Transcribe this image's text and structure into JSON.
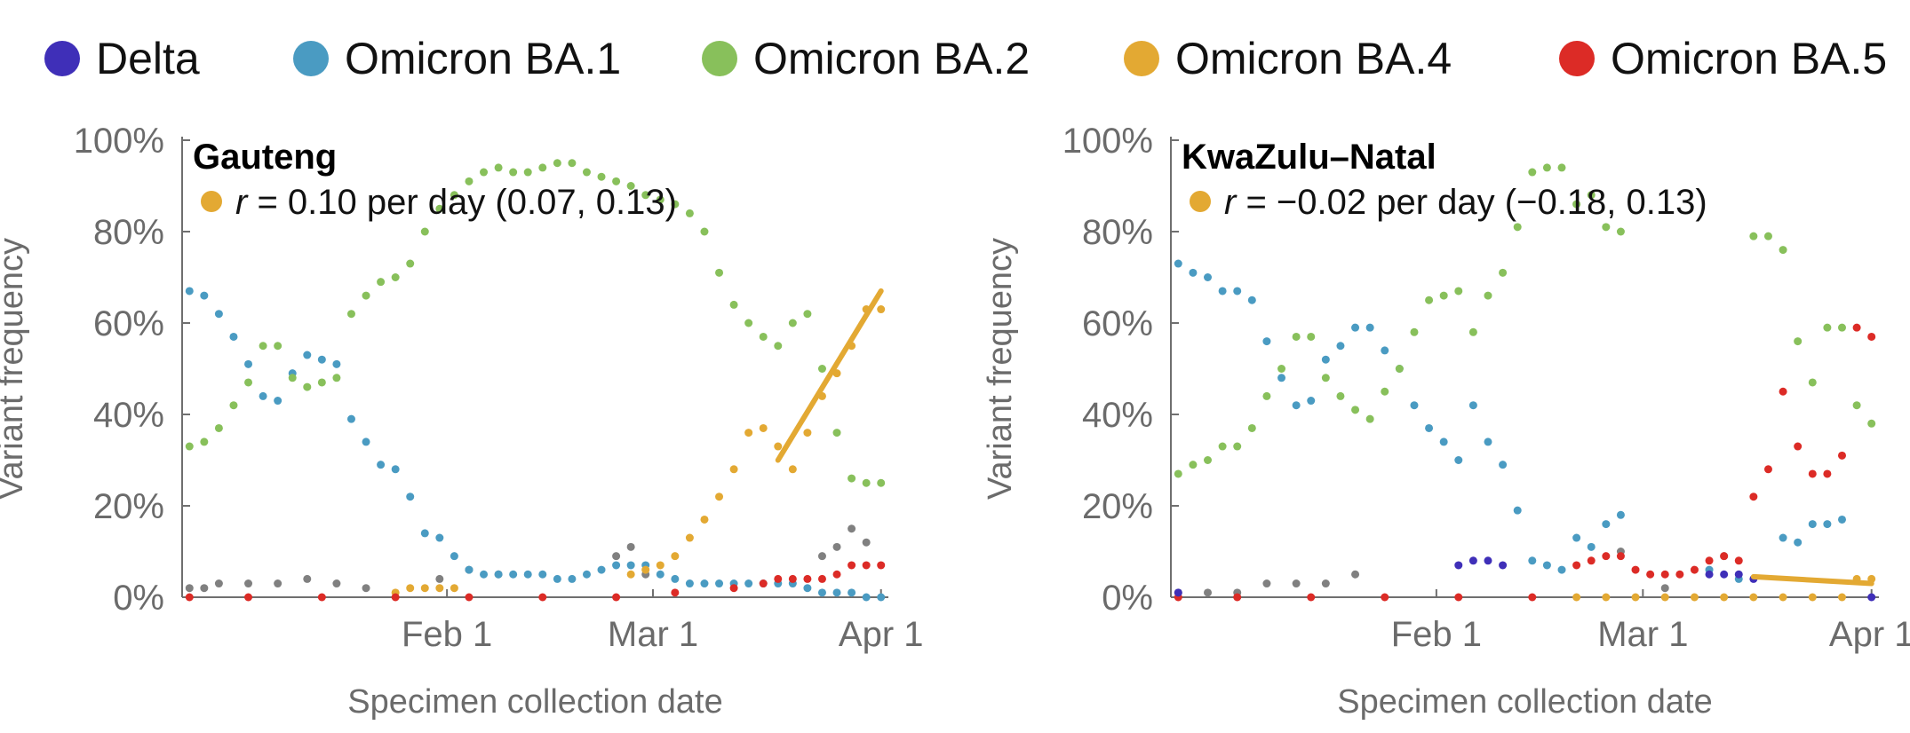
{
  "legend": {
    "items": [
      {
        "label": "Delta",
        "color": "#3f2fb8"
      },
      {
        "label": "Omicron BA.1",
        "color": "#4a9bc2"
      },
      {
        "label": "Omicron BA.2",
        "color": "#88c05b"
      },
      {
        "label": "Omicron BA.4",
        "color": "#e3a933"
      },
      {
        "label": "Omicron BA.5",
        "color": "#dc2b26"
      }
    ],
    "other_color": "#808080"
  },
  "chart_data": [
    {
      "type": "scatter",
      "title": "Gauteng",
      "annotation": {
        "symbol": "r",
        "text": " = 0.10 per day (0.07, 0.13)",
        "color": "#e3a933"
      },
      "xlabel": "Specimen collection date",
      "ylabel": "Variant frequency",
      "x_ticks": [
        "Feb 1",
        "Mar 1",
        "Apr 1"
      ],
      "y_ticks": [
        "0%",
        "20%",
        "40%",
        "60%",
        "80%",
        "100%"
      ],
      "xlim": [
        "2021-12-27",
        "2022-04-02"
      ],
      "ylim": [
        0,
        1
      ],
      "series": [
        {
          "name": "Omicron BA.1",
          "color": "#4a9bc2",
          "x": [
            "2021-12-28",
            "2021-12-30",
            "2022-01-01",
            "2022-01-03",
            "2022-01-05",
            "2022-01-07",
            "2022-01-09",
            "2022-01-11",
            "2022-01-13",
            "2022-01-15",
            "2022-01-17",
            "2022-01-19",
            "2022-01-21",
            "2022-01-23",
            "2022-01-25",
            "2022-01-27",
            "2022-01-29",
            "2022-01-31",
            "2022-02-02",
            "2022-02-04",
            "2022-02-06",
            "2022-02-08",
            "2022-02-10",
            "2022-02-12",
            "2022-02-14",
            "2022-02-16",
            "2022-02-18",
            "2022-02-20",
            "2022-02-22",
            "2022-02-24",
            "2022-02-26",
            "2022-02-28",
            "2022-03-02",
            "2022-03-04",
            "2022-03-06",
            "2022-03-08",
            "2022-03-10",
            "2022-03-12",
            "2022-03-14",
            "2022-03-16",
            "2022-03-18",
            "2022-03-20",
            "2022-03-22",
            "2022-03-24",
            "2022-03-26",
            "2022-03-28",
            "2022-03-30",
            "2022-04-01"
          ],
          "y": [
            0.67,
            0.66,
            0.62,
            0.57,
            0.51,
            0.44,
            0.43,
            0.49,
            0.53,
            0.52,
            0.51,
            0.39,
            0.34,
            0.29,
            0.28,
            0.22,
            0.14,
            0.13,
            0.09,
            0.06,
            0.05,
            0.05,
            0.05,
            0.05,
            0.05,
            0.04,
            0.04,
            0.05,
            0.06,
            0.07,
            0.07,
            0.07,
            0.05,
            0.04,
            0.03,
            0.03,
            0.03,
            0.03,
            0.03,
            0.03,
            0.03,
            0.03,
            0.02,
            0.01,
            0.01,
            0.01,
            0.0,
            0.0
          ]
        },
        {
          "name": "Omicron BA.2",
          "color": "#88c05b",
          "x": [
            "2021-12-28",
            "2021-12-30",
            "2022-01-01",
            "2022-01-03",
            "2022-01-05",
            "2022-01-07",
            "2022-01-09",
            "2022-01-11",
            "2022-01-13",
            "2022-01-15",
            "2022-01-17",
            "2022-01-19",
            "2022-01-21",
            "2022-01-23",
            "2022-01-25",
            "2022-01-27",
            "2022-01-29",
            "2022-01-31",
            "2022-02-02",
            "2022-02-04",
            "2022-02-06",
            "2022-02-08",
            "2022-02-10",
            "2022-02-12",
            "2022-02-14",
            "2022-02-16",
            "2022-02-18",
            "2022-02-20",
            "2022-02-22",
            "2022-02-24",
            "2022-02-26",
            "2022-02-28",
            "2022-03-02",
            "2022-03-04",
            "2022-03-06",
            "2022-03-08",
            "2022-03-10",
            "2022-03-12",
            "2022-03-14",
            "2022-03-16",
            "2022-03-18",
            "2022-03-20",
            "2022-03-22",
            "2022-03-24",
            "2022-03-26",
            "2022-03-28",
            "2022-03-30",
            "2022-04-01"
          ],
          "y": [
            0.33,
            0.34,
            0.37,
            0.42,
            0.47,
            0.55,
            0.55,
            0.48,
            0.46,
            0.47,
            0.48,
            0.62,
            0.66,
            0.69,
            0.7,
            0.73,
            0.8,
            0.85,
            0.88,
            0.91,
            0.93,
            0.94,
            0.93,
            0.93,
            0.94,
            0.95,
            0.95,
            0.93,
            0.92,
            0.91,
            0.9,
            0.88,
            0.87,
            0.86,
            0.84,
            0.8,
            0.71,
            0.64,
            0.6,
            0.57,
            0.55,
            0.6,
            0.62,
            0.5,
            0.36,
            0.26,
            0.25,
            0.25
          ]
        },
        {
          "name": "Omicron BA.4",
          "color": "#e3a933",
          "x": [
            "2022-01-25",
            "2022-01-27",
            "2022-01-29",
            "2022-01-31",
            "2022-02-02",
            "2022-02-26",
            "2022-02-28",
            "2022-03-02",
            "2022-03-04",
            "2022-03-06",
            "2022-03-08",
            "2022-03-10",
            "2022-03-12",
            "2022-03-14",
            "2022-03-16",
            "2022-03-18",
            "2022-03-20",
            "2022-03-22",
            "2022-03-24",
            "2022-03-26",
            "2022-03-28",
            "2022-03-30",
            "2022-04-01"
          ],
          "y": [
            0.01,
            0.02,
            0.02,
            0.02,
            0.02,
            0.05,
            0.06,
            0.07,
            0.09,
            0.13,
            0.17,
            0.22,
            0.28,
            0.36,
            0.37,
            0.33,
            0.28,
            0.36,
            0.44,
            0.49,
            0.55,
            0.63,
            0.63
          ]
        },
        {
          "name": "Omicron BA.5",
          "color": "#dc2b26",
          "x": [
            "2021-12-28",
            "2022-01-05",
            "2022-01-15",
            "2022-01-25",
            "2022-02-04",
            "2022-02-14",
            "2022-02-24",
            "2022-03-04",
            "2022-03-12",
            "2022-03-16",
            "2022-03-18",
            "2022-03-20",
            "2022-03-22",
            "2022-03-24",
            "2022-03-26",
            "2022-03-28",
            "2022-03-30",
            "2022-04-01"
          ],
          "y": [
            0.0,
            0.0,
            0.0,
            0.0,
            0.0,
            0.0,
            0.0,
            0.01,
            0.02,
            0.03,
            0.04,
            0.04,
            0.04,
            0.04,
            0.05,
            0.07,
            0.07,
            0.07
          ]
        },
        {
          "name": "Other",
          "color": "#808080",
          "x": [
            "2021-12-28",
            "2021-12-30",
            "2022-01-01",
            "2022-01-05",
            "2022-01-09",
            "2022-01-13",
            "2022-01-17",
            "2022-01-21",
            "2022-01-31",
            "2022-02-04",
            "2022-02-08",
            "2022-02-24",
            "2022-02-26",
            "2022-02-28",
            "2022-03-24",
            "2022-03-26",
            "2022-03-28",
            "2022-03-30"
          ],
          "y": [
            0.02,
            0.02,
            0.03,
            0.03,
            0.03,
            0.04,
            0.03,
            0.02,
            0.04,
            0.06,
            0.05,
            0.09,
            0.11,
            0.05,
            0.09,
            0.11,
            0.15,
            0.12
          ]
        }
      ],
      "fit_line": {
        "color": "#e3a933",
        "x": [
          "2022-03-18",
          "2022-04-01"
        ],
        "y": [
          0.3,
          0.67
        ]
      }
    },
    {
      "type": "scatter",
      "title": "KwaZulu–Natal",
      "annotation": {
        "symbol": "r",
        "text": " = −0.02 per day (−0.18, 0.13)",
        "color": "#e3a933"
      },
      "xlabel": "Specimen collection date",
      "ylabel": "Variant frequency",
      "x_ticks": [
        "Feb 1",
        "Mar 1",
        "Apr 1"
      ],
      "y_ticks": [
        "0%",
        "20%",
        "40%",
        "60%",
        "80%",
        "100%"
      ],
      "xlim": [
        "2021-12-27",
        "2022-04-02"
      ],
      "ylim": [
        0,
        1
      ],
      "series": [
        {
          "name": "Omicron BA.1",
          "color": "#4a9bc2",
          "x": [
            "2021-12-28",
            "2021-12-30",
            "2022-01-01",
            "2022-01-03",
            "2022-01-05",
            "2022-01-07",
            "2022-01-09",
            "2022-01-11",
            "2022-01-13",
            "2022-01-15",
            "2022-01-17",
            "2022-01-19",
            "2022-01-21",
            "2022-01-23",
            "2022-01-25",
            "2022-01-27",
            "2022-01-29",
            "2022-01-31",
            "2022-02-02",
            "2022-02-04",
            "2022-02-06",
            "2022-02-08",
            "2022-02-10",
            "2022-02-12",
            "2022-02-14",
            "2022-02-16",
            "2022-02-18",
            "2022-02-20",
            "2022-02-22",
            "2022-02-24",
            "2022-02-26",
            "2022-03-10",
            "2022-03-14",
            "2022-03-20",
            "2022-03-22",
            "2022-03-24",
            "2022-03-26",
            "2022-03-28"
          ],
          "y": [
            0.73,
            0.71,
            0.7,
            0.67,
            0.67,
            0.65,
            0.56,
            0.48,
            0.42,
            0.43,
            0.52,
            0.55,
            0.59,
            0.59,
            0.54,
            0.5,
            0.42,
            0.37,
            0.34,
            0.3,
            0.42,
            0.34,
            0.29,
            0.19,
            0.08,
            0.07,
            0.06,
            0.13,
            0.11,
            0.16,
            0.18,
            0.06,
            0.04,
            0.13,
            0.12,
            0.16,
            0.16,
            0.17
          ]
        },
        {
          "name": "Omicron BA.2",
          "color": "#88c05b",
          "x": [
            "2021-12-28",
            "2021-12-30",
            "2022-01-01",
            "2022-01-03",
            "2022-01-05",
            "2022-01-07",
            "2022-01-09",
            "2022-01-11",
            "2022-01-13",
            "2022-01-15",
            "2022-01-17",
            "2022-01-19",
            "2022-01-21",
            "2022-01-23",
            "2022-01-25",
            "2022-01-27",
            "2022-01-29",
            "2022-01-31",
            "2022-02-02",
            "2022-02-04",
            "2022-02-06",
            "2022-02-08",
            "2022-02-10",
            "2022-02-12",
            "2022-02-14",
            "2022-02-16",
            "2022-02-18",
            "2022-02-20",
            "2022-02-22",
            "2022-02-24",
            "2022-02-26",
            "2022-03-16",
            "2022-03-18",
            "2022-03-20",
            "2022-03-22",
            "2022-03-24",
            "2022-03-26",
            "2022-03-28",
            "2022-03-30",
            "2022-04-01"
          ],
          "y": [
            0.27,
            0.29,
            0.3,
            0.33,
            0.33,
            0.37,
            0.44,
            0.5,
            0.57,
            0.57,
            0.48,
            0.44,
            0.41,
            0.39,
            0.45,
            0.5,
            0.58,
            0.65,
            0.66,
            0.67,
            0.58,
            0.66,
            0.71,
            0.81,
            0.93,
            0.94,
            0.94,
            0.86,
            0.88,
            0.81,
            0.8,
            0.79,
            0.79,
            0.76,
            0.56,
            0.47,
            0.59,
            0.59,
            0.42,
            0.38
          ]
        },
        {
          "name": "Omicron BA.4",
          "color": "#e3a933",
          "x": [
            "2022-02-20",
            "2022-02-24",
            "2022-02-28",
            "2022-03-04",
            "2022-03-08",
            "2022-03-12",
            "2022-03-16",
            "2022-03-20",
            "2022-03-24",
            "2022-03-28",
            "2022-03-30",
            "2022-04-01"
          ],
          "y": [
            0.0,
            0.0,
            0.0,
            0.0,
            0.0,
            0.0,
            0.0,
            0.0,
            0.0,
            0.0,
            0.04,
            0.04
          ]
        },
        {
          "name": "Omicron BA.5",
          "color": "#dc2b26",
          "x": [
            "2021-12-28",
            "2022-01-05",
            "2022-01-15",
            "2022-01-25",
            "2022-02-04",
            "2022-02-14",
            "2022-02-20",
            "2022-02-22",
            "2022-02-24",
            "2022-02-26",
            "2022-02-28",
            "2022-03-02",
            "2022-03-04",
            "2022-03-06",
            "2022-03-08",
            "2022-03-10",
            "2022-03-12",
            "2022-03-14",
            "2022-03-16",
            "2022-03-18",
            "2022-03-20",
            "2022-03-22",
            "2022-03-24",
            "2022-03-26",
            "2022-03-28",
            "2022-03-30",
            "2022-04-01"
          ],
          "y": [
            0.0,
            0.0,
            0.0,
            0.0,
            0.0,
            0.0,
            0.07,
            0.08,
            0.09,
            0.09,
            0.06,
            0.05,
            0.05,
            0.05,
            0.06,
            0.08,
            0.09,
            0.08,
            0.22,
            0.28,
            0.45,
            0.33,
            0.27,
            0.27,
            0.31,
            0.59,
            0.57
          ]
        },
        {
          "name": "Delta",
          "color": "#3f2fb8",
          "x": [
            "2021-12-28",
            "2022-02-04",
            "2022-02-06",
            "2022-02-08",
            "2022-02-10",
            "2022-03-10",
            "2022-03-12",
            "2022-03-14",
            "2022-03-16",
            "2022-04-01"
          ],
          "y": [
            0.01,
            0.07,
            0.08,
            0.08,
            0.07,
            0.05,
            0.05,
            0.05,
            0.04,
            0.0
          ]
        },
        {
          "name": "Other",
          "color": "#808080",
          "x": [
            "2021-12-28",
            "2022-01-01",
            "2022-01-05",
            "2022-01-09",
            "2022-01-13",
            "2022-01-17",
            "2022-01-21",
            "2022-02-26",
            "2022-03-04",
            "2022-03-12"
          ],
          "y": [
            0.01,
            0.01,
            0.01,
            0.03,
            0.03,
            0.03,
            0.05,
            0.1,
            0.02,
            0.09
          ]
        }
      ],
      "fit_line": {
        "color": "#e3a933",
        "x": [
          "2022-03-16",
          "2022-04-01"
        ],
        "y": [
          0.045,
          0.03
        ]
      }
    }
  ]
}
